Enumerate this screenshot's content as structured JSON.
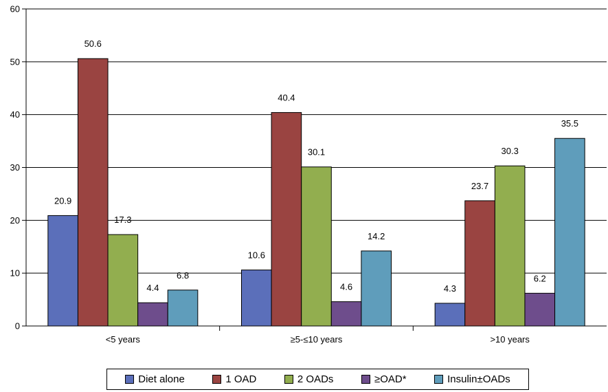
{
  "chart_data": {
    "type": "bar",
    "categories": [
      "<5 years",
      "≥5-≤10 years",
      ">10 years"
    ],
    "series": [
      {
        "name": "Diet alone",
        "color": "#5b6fba",
        "values": [
          20.9,
          10.6,
          4.3
        ]
      },
      {
        "name": "1 OAD",
        "color": "#9a4441",
        "values": [
          50.6,
          40.4,
          23.7
        ]
      },
      {
        "name": "2 OADs",
        "color": "#92ae4f",
        "values": [
          17.3,
          30.1,
          30.3
        ]
      },
      {
        "name": "≥OAD*",
        "color": "#6e4d8c",
        "values": [
          4.4,
          4.6,
          6.2
        ]
      },
      {
        "name": "Insulin±OADs",
        "color": "#5f9dbb",
        "values": [
          6.8,
          14.2,
          35.5
        ]
      }
    ],
    "ylim": [
      0,
      60
    ],
    "yticks": [
      0,
      10,
      20,
      30,
      40,
      50,
      60
    ],
    "grid": true,
    "legend_position": "bottom",
    "xlabel": "",
    "ylabel": "",
    "title": ""
  }
}
